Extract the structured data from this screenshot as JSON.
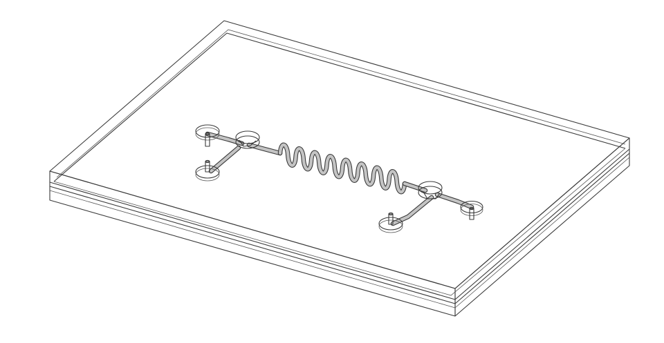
{
  "diagram": {
    "subject": "microfluidic-chip-isometric-render",
    "colors": {
      "background": "#ffffff",
      "top_face": "#d6d6d6",
      "top_face_highlight": "#e4e4e4",
      "front_face": "#cdcdcd",
      "side_face": "#bdbdbd",
      "edge": "#3a3a3a",
      "channel_fill": "#c4c4c4"
    },
    "serpentine_turns": 8,
    "reservoir_count": 6,
    "port_count": 4
  }
}
